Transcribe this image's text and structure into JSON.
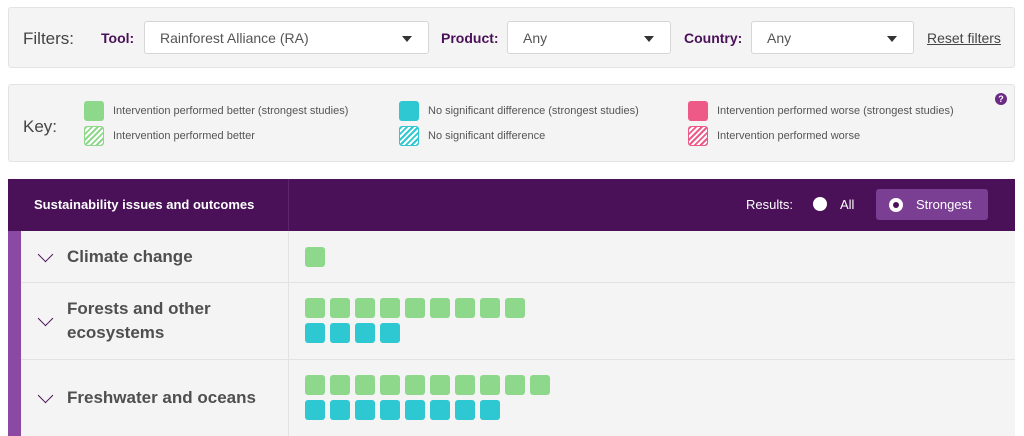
{
  "filters": {
    "title": "Filters:",
    "tool": {
      "label": "Tool:",
      "value": "Rainforest Alliance (RA)"
    },
    "product": {
      "label": "Product:",
      "value": "Any"
    },
    "country": {
      "label": "Country:",
      "value": "Any"
    },
    "reset_label": "Reset filters"
  },
  "key": {
    "title": "Key:",
    "help_label": "?",
    "items": [
      {
        "label": "Intervention performed better (strongest studies)",
        "swatch": "#8dd88a",
        "style": "solid"
      },
      {
        "label": "Intervention performed better",
        "swatch": "#8dd88a",
        "style": "hatched"
      },
      {
        "label": "No significant difference (strongest studies)",
        "swatch": "#2ec8d2",
        "style": "solid"
      },
      {
        "label": "No significant difference",
        "swatch": "#2ec8d2",
        "style": "hatched"
      },
      {
        "label": "Intervention performed worse (strongest studies)",
        "swatch": "#ee5a88",
        "style": "solid"
      },
      {
        "label": "Intervention performed worse",
        "swatch": "#ee5a88",
        "style": "hatched"
      }
    ]
  },
  "table": {
    "header_title": "Sustainability issues and outcomes",
    "results_label": "Results:",
    "options": [
      {
        "label": "All",
        "selected": false
      },
      {
        "label": "Strongest",
        "selected": true
      }
    ],
    "rows": [
      {
        "title": "Climate change",
        "better_strongest": 1,
        "no_difference_strongest": 0
      },
      {
        "title": "Forests and other ecosystems",
        "better_strongest": 9,
        "no_difference_strongest": 4
      },
      {
        "title": "Freshwater and oceans",
        "better_strongest": 10,
        "no_difference_strongest": 8
      }
    ]
  },
  "colors": {
    "brand_purple": "#4a1158",
    "accent_purple": "#7a3e92",
    "better": "#8dd88a",
    "no_difference": "#2ec8d2",
    "worse": "#ee5a88"
  }
}
